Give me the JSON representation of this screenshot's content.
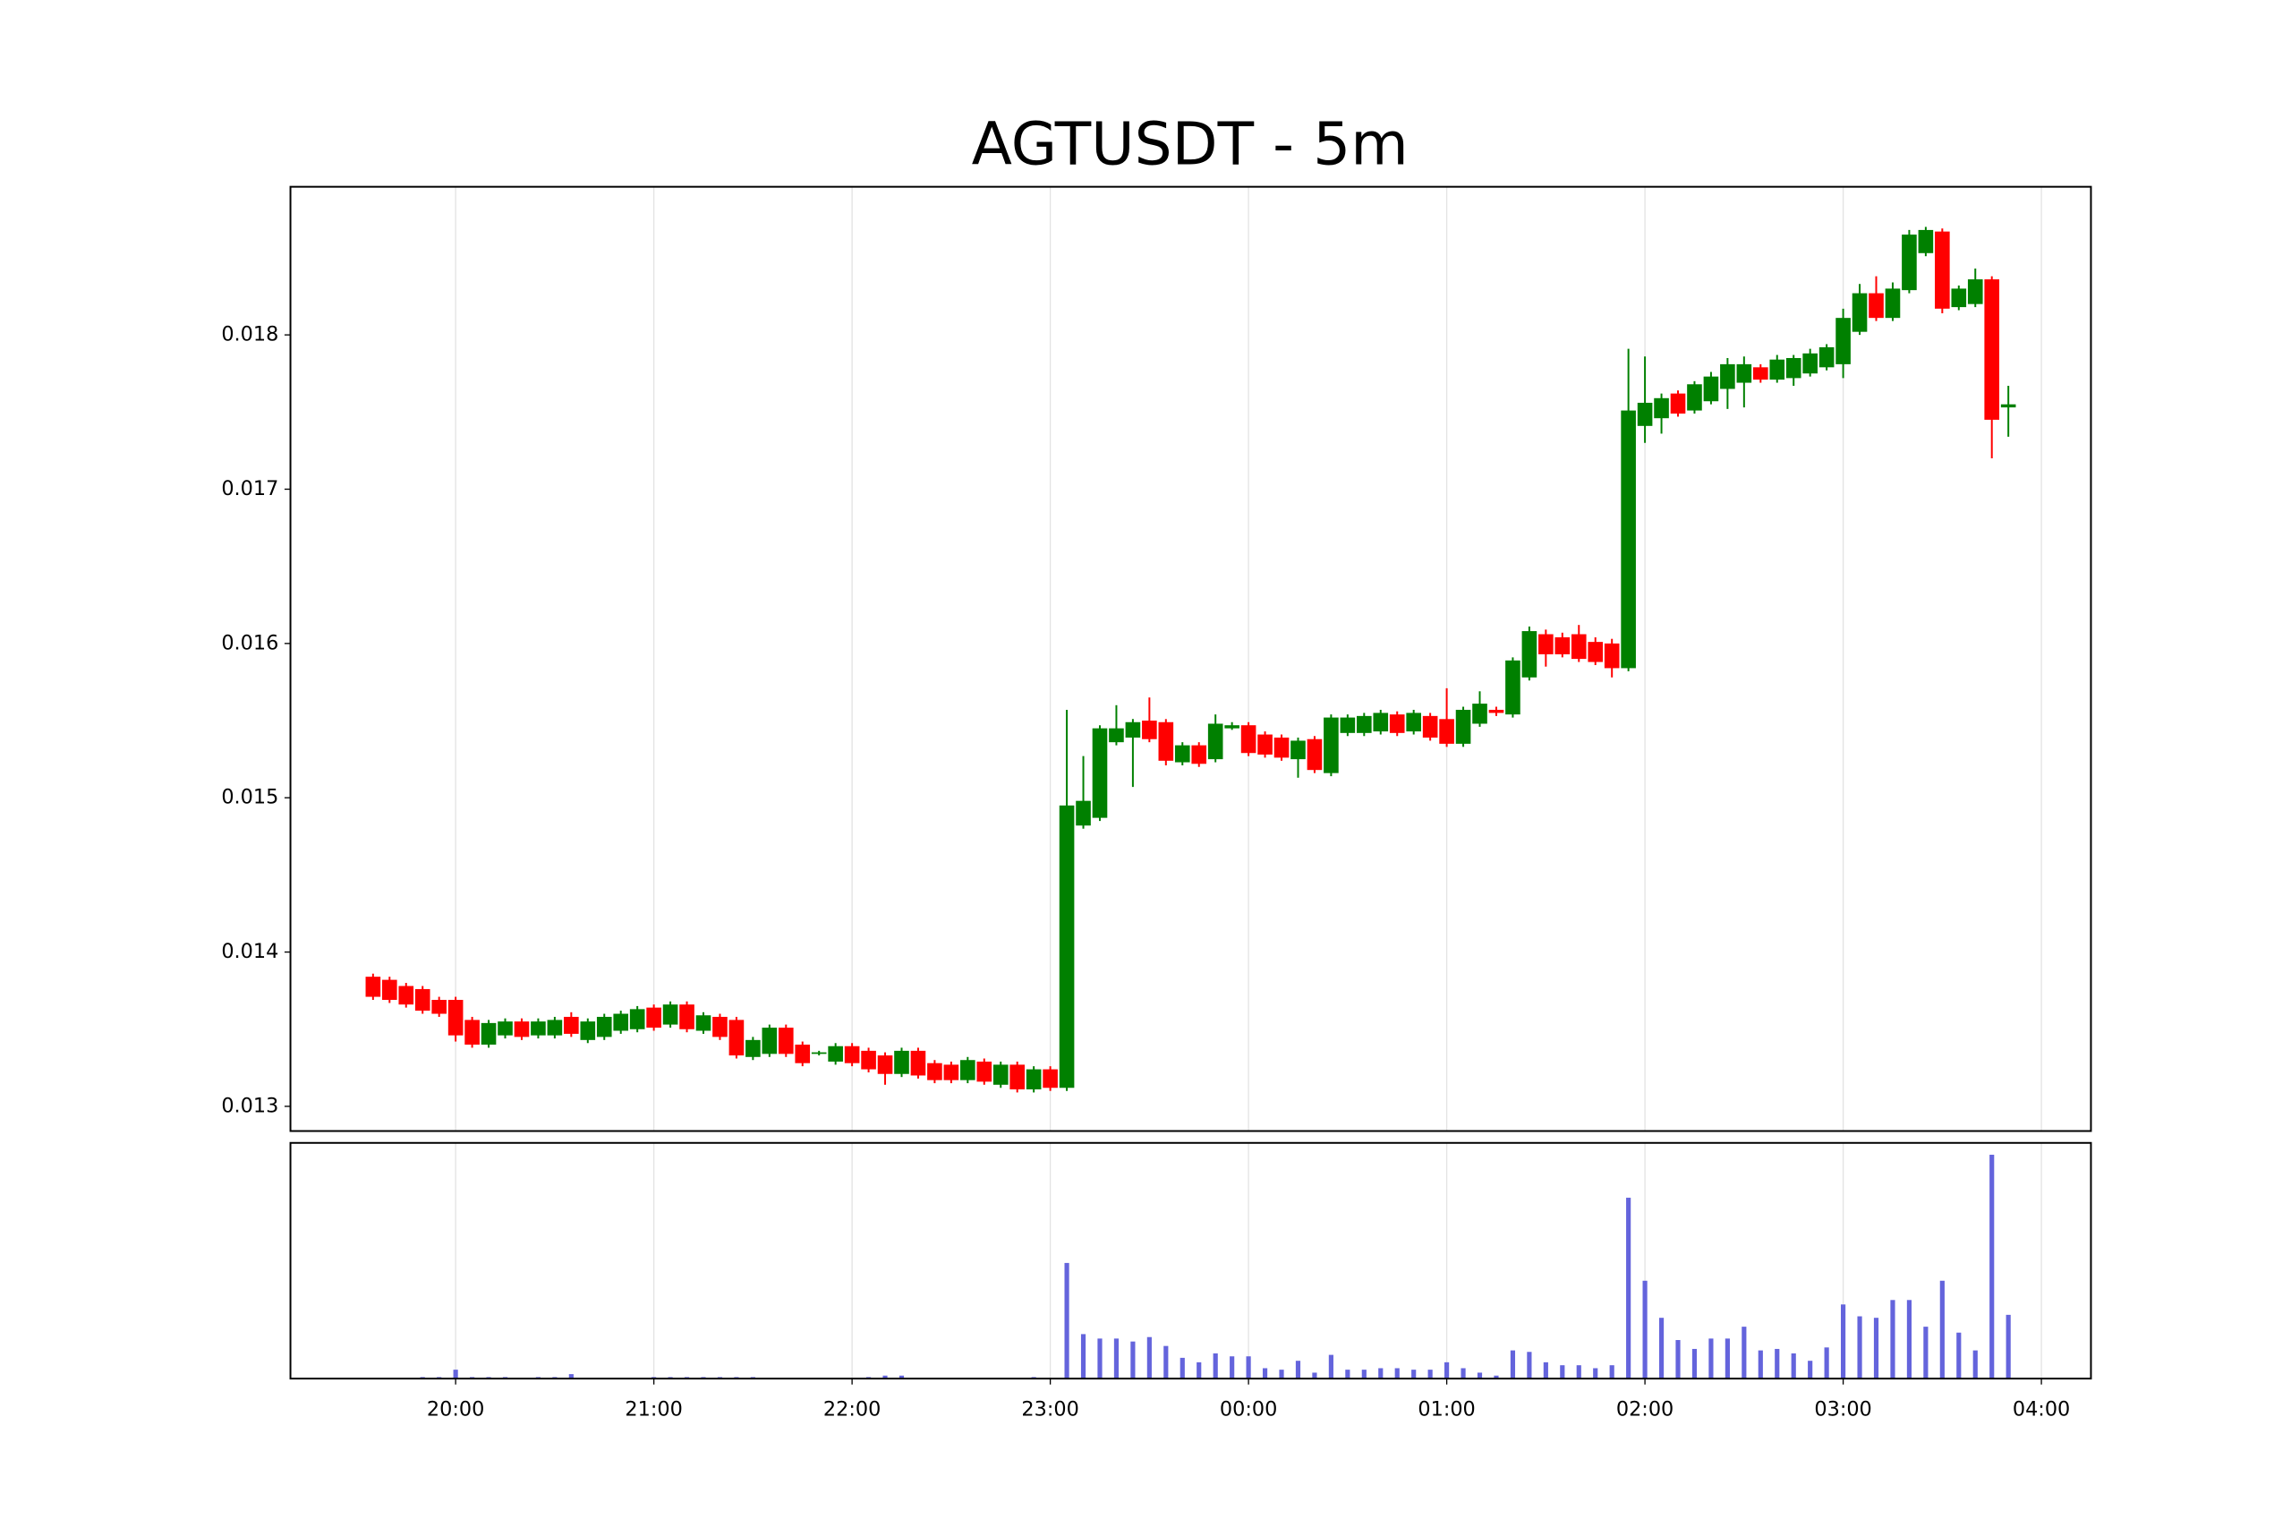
{
  "chart_data": {
    "type": "candlestick",
    "title": "AGTUSDT - 5m",
    "x": [
      "19:35",
      "19:40",
      "19:45",
      "19:50",
      "19:55",
      "20:00",
      "20:05",
      "20:10",
      "20:15",
      "20:20",
      "20:25",
      "20:30",
      "20:35",
      "20:40",
      "20:45",
      "20:50",
      "20:55",
      "21:00",
      "21:05",
      "21:10",
      "21:15",
      "21:20",
      "21:25",
      "21:30",
      "21:35",
      "21:40",
      "21:45",
      "21:50",
      "21:55",
      "22:00",
      "22:05",
      "22:10",
      "22:15",
      "22:20",
      "22:25",
      "22:30",
      "22:35",
      "22:40",
      "22:45",
      "22:50",
      "22:55",
      "23:00",
      "23:05",
      "23:10",
      "23:15",
      "23:20",
      "23:25",
      "23:30",
      "23:35",
      "23:40",
      "23:45",
      "23:50",
      "23:55",
      "00:00",
      "00:05",
      "00:10",
      "00:15",
      "00:20",
      "00:25",
      "00:30",
      "00:35",
      "00:40",
      "00:45",
      "00:50",
      "00:55",
      "01:00",
      "01:05",
      "01:10",
      "01:15",
      "01:20",
      "01:25",
      "01:30",
      "01:35",
      "01:40",
      "01:45",
      "01:50",
      "01:55",
      "02:00",
      "02:05",
      "02:10",
      "02:15",
      "02:20",
      "02:25",
      "02:30",
      "02:35",
      "02:40",
      "02:45",
      "02:50",
      "02:55",
      "03:00",
      "03:05",
      "03:10",
      "03:15",
      "03:20",
      "03:25",
      "03:30",
      "03:35",
      "03:40",
      "03:45",
      "03:50"
    ],
    "open": [
      0.01384,
      0.01382,
      0.01378,
      0.01376,
      0.01369,
      0.01369,
      0.01356,
      0.0134,
      0.01346,
      0.01355,
      0.01346,
      0.01346,
      0.01358,
      0.01343,
      0.01345,
      0.01349,
      0.0135,
      0.01364,
      0.01353,
      0.01366,
      0.01349,
      0.01358,
      0.01356,
      0.01332,
      0.01334,
      0.01351,
      0.0134,
      0.01334,
      0.01329,
      0.01339,
      0.01336,
      0.01333,
      0.01321,
      0.01336,
      0.01328,
      0.01327,
      0.01317,
      0.01329,
      0.01314,
      0.01327,
      0.01311,
      0.01324,
      0.01312,
      0.01482,
      0.01487,
      0.01536,
      0.01539,
      0.0155,
      0.01549,
      0.01523,
      0.01534,
      0.01525,
      0.01545,
      0.01547,
      0.01541,
      0.01539,
      0.01525,
      0.01538,
      0.01516,
      0.01542,
      0.01542,
      0.01543,
      0.01554,
      0.01543,
      0.01553,
      0.01551,
      0.01535,
      0.01548,
      0.01557,
      0.01554,
      0.01578,
      0.01606,
      0.01604,
      0.01606,
      0.01601,
      0.016,
      0.01584,
      0.01741,
      0.01746,
      0.01762,
      0.01751,
      0.01757,
      0.01765,
      0.01769,
      0.01779,
      0.01771,
      0.01772,
      0.01775,
      0.01779,
      0.01781,
      0.01802,
      0.01827,
      0.01811,
      0.01829,
      0.01853,
      0.01867,
      0.01818,
      0.0182,
      0.01836,
      0.01753
    ],
    "high": [
      0.01386,
      0.01384,
      0.0138,
      0.01378,
      0.01371,
      0.01371,
      0.01358,
      0.01356,
      0.01357,
      0.01357,
      0.01357,
      0.01358,
      0.01361,
      0.01357,
      0.0136,
      0.01362,
      0.01365,
      0.01366,
      0.01368,
      0.01368,
      0.01361,
      0.0136,
      0.01358,
      0.01345,
      0.01353,
      0.01353,
      0.01342,
      0.01336,
      0.01341,
      0.01341,
      0.01338,
      0.01335,
      0.01338,
      0.01338,
      0.0133,
      0.01329,
      0.01332,
      0.01331,
      0.01329,
      0.01329,
      0.01326,
      0.01326,
      0.01557,
      0.01527,
      0.01547,
      0.0156,
      0.01551,
      0.01565,
      0.01551,
      0.01536,
      0.01536,
      0.01554,
      0.01549,
      0.01549,
      0.01543,
      0.01541,
      0.01539,
      0.0154,
      0.01554,
      0.01554,
      0.01555,
      0.01557,
      0.01556,
      0.01557,
      0.01555,
      0.01571,
      0.01559,
      0.01569,
      0.01559,
      0.01591,
      0.01611,
      0.01609,
      0.01607,
      0.01612,
      0.01604,
      0.01603,
      0.01791,
      0.01786,
      0.01762,
      0.01764,
      0.0177,
      0.01776,
      0.01785,
      0.01786,
      0.01781,
      0.01787,
      0.01787,
      0.01791,
      0.01794,
      0.01817,
      0.01833,
      0.01838,
      0.01834,
      0.01868,
      0.0187,
      0.01869,
      0.01832,
      0.01843,
      0.01838,
      0.01767
    ],
    "low": [
      0.01369,
      0.01367,
      0.01364,
      0.0136,
      0.01358,
      0.01342,
      0.01338,
      0.01338,
      0.01344,
      0.01343,
      0.01344,
      0.01344,
      0.01345,
      0.01341,
      0.01343,
      0.01347,
      0.01348,
      0.01349,
      0.01351,
      0.01348,
      0.01347,
      0.01343,
      0.01331,
      0.0133,
      0.01332,
      0.01332,
      0.01326,
      0.01333,
      0.01327,
      0.01326,
      0.01322,
      0.01314,
      0.01319,
      0.01318,
      0.01315,
      0.01315,
      0.01315,
      0.01314,
      0.01312,
      0.01309,
      0.01309,
      0.0131,
      0.0131,
      0.0148,
      0.01485,
      0.01534,
      0.01507,
      0.01536,
      0.01521,
      0.01521,
      0.0152,
      0.01523,
      0.01544,
      0.01527,
      0.01526,
      0.01524,
      0.01513,
      0.01516,
      0.01514,
      0.0154,
      0.0154,
      0.01541,
      0.0154,
      0.01541,
      0.01537,
      0.01533,
      0.01533,
      0.01546,
      0.01553,
      0.01552,
      0.01576,
      0.01585,
      0.01591,
      0.01588,
      0.01586,
      0.01578,
      0.01582,
      0.0173,
      0.01736,
      0.01747,
      0.01749,
      0.01755,
      0.01752,
      0.01753,
      0.01769,
      0.01769,
      0.01767,
      0.01773,
      0.01777,
      0.01772,
      0.018,
      0.01809,
      0.01809,
      0.01827,
      0.01851,
      0.01814,
      0.01816,
      0.01818,
      0.0172,
      0.01734
    ],
    "close": [
      0.01371,
      0.01369,
      0.01366,
      0.01362,
      0.0136,
      0.01346,
      0.0134,
      0.01354,
      0.01355,
      0.01345,
      0.01355,
      0.01356,
      0.01347,
      0.01355,
      0.01358,
      0.0136,
      0.01363,
      0.01351,
      0.01366,
      0.0135,
      0.01359,
      0.01345,
      0.01333,
      0.01343,
      0.01351,
      0.01334,
      0.01328,
      0.01335,
      0.01339,
      0.01328,
      0.01324,
      0.01321,
      0.01336,
      0.0132,
      0.01317,
      0.01317,
      0.0133,
      0.01316,
      0.01327,
      0.01311,
      0.01324,
      0.01312,
      0.01495,
      0.01498,
      0.01545,
      0.01545,
      0.01549,
      0.01538,
      0.01524,
      0.01534,
      0.01522,
      0.01548,
      0.01547,
      0.01529,
      0.01528,
      0.01526,
      0.01537,
      0.01518,
      0.01552,
      0.01552,
      0.01553,
      0.01555,
      0.01542,
      0.01555,
      0.01539,
      0.01535,
      0.01557,
      0.01561,
      0.01555,
      0.01589,
      0.01608,
      0.01593,
      0.01593,
      0.0159,
      0.01588,
      0.01584,
      0.01751,
      0.01756,
      0.01759,
      0.01749,
      0.01768,
      0.01773,
      0.01781,
      0.01781,
      0.01771,
      0.01784,
      0.01785,
      0.01788,
      0.01792,
      0.01811,
      0.01827,
      0.01811,
      0.0183,
      0.01865,
      0.01868,
      0.01817,
      0.0183,
      0.01836,
      0.01745,
      0.01755
    ],
    "volume": [
      0,
      0,
      0,
      1,
      1,
      6,
      1,
      1,
      1,
      0,
      1,
      1,
      3,
      0,
      0,
      0,
      0,
      1,
      1,
      1,
      1,
      1,
      1,
      1,
      0,
      0,
      0,
      0,
      0,
      0,
      1,
      2,
      2,
      0,
      0,
      0,
      0,
      0,
      0,
      0,
      1,
      0,
      78,
      30,
      27,
      27,
      25,
      28,
      22,
      14,
      11,
      17,
      15,
      15,
      7,
      6,
      12,
      4,
      16,
      6,
      6,
      7,
      7,
      6,
      6,
      11,
      7,
      4,
      2,
      19,
      18,
      11,
      9,
      9,
      7,
      9,
      122,
      66,
      41,
      26,
      20,
      27,
      27,
      35,
      19,
      20,
      17,
      12,
      21,
      50,
      42,
      41,
      53,
      53,
      35,
      66,
      31,
      19,
      151,
      43
    ],
    "up_color": "#008000",
    "down_color": "#ff0000",
    "volume_color": "#6464dc",
    "xlim": [
      "19:10",
      "04:15"
    ],
    "xticks": [
      "20:00",
      "21:00",
      "22:00",
      "23:00",
      "00:00",
      "01:00",
      "02:00",
      "03:00",
      "04:00"
    ],
    "ylim": [
      0.01284,
      0.01896
    ],
    "yticks": [
      0.013,
      0.014,
      0.015,
      0.016,
      0.017,
      0.018
    ],
    "volume_ylim": [
      0,
      159
    ],
    "grid": true
  }
}
